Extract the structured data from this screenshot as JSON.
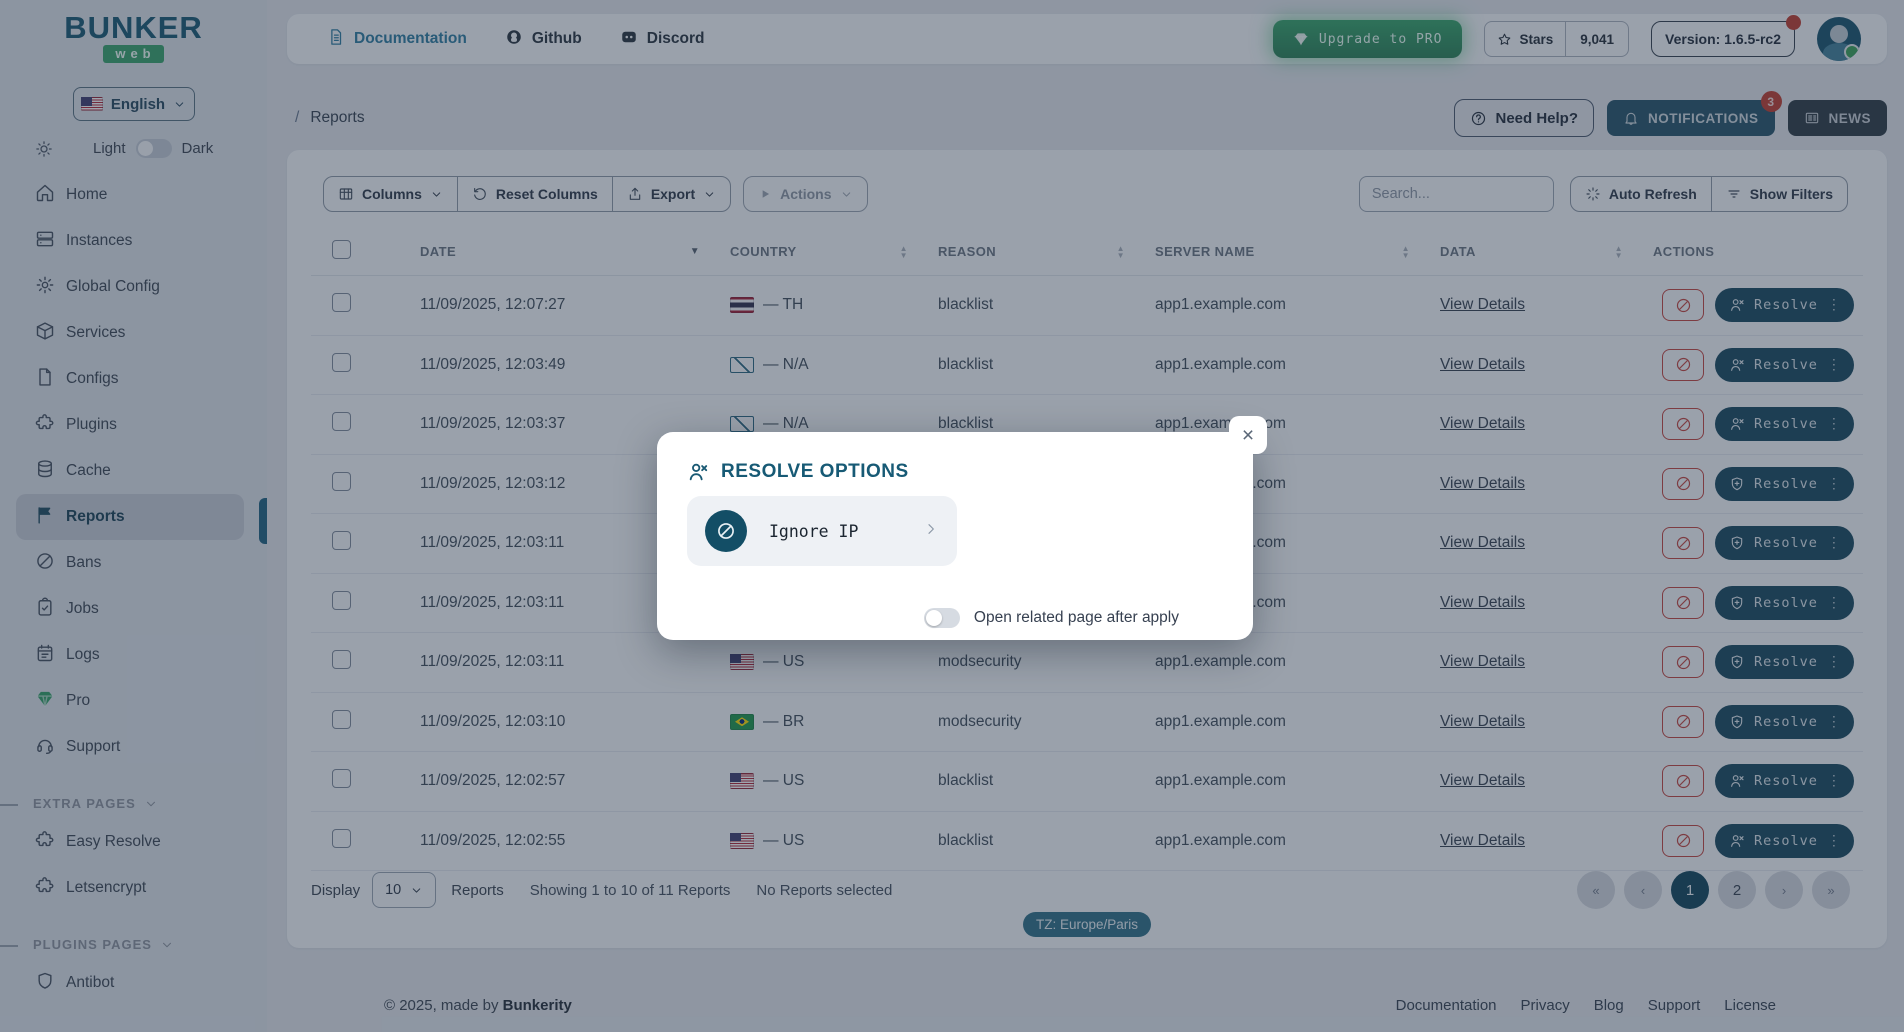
{
  "sidebar": {
    "logo_title": "BUNKER",
    "logo_badge": "web",
    "language": "English",
    "theme_light": "Light",
    "theme_dark": "Dark",
    "nav": [
      {
        "label": "Home",
        "icon": "home",
        "active": "false"
      },
      {
        "label": "Instances",
        "icon": "servers",
        "active": "false"
      },
      {
        "label": "Global Config",
        "icon": "gear",
        "active": "false"
      },
      {
        "label": "Services",
        "icon": "cube",
        "active": "false"
      },
      {
        "label": "Configs",
        "icon": "file",
        "active": "false"
      },
      {
        "label": "Plugins",
        "icon": "puzzle",
        "active": "false"
      },
      {
        "label": "Cache",
        "icon": "db",
        "active": "false"
      },
      {
        "label": "Reports",
        "icon": "flag",
        "active": "true"
      },
      {
        "label": "Bans",
        "icon": "ban",
        "active": "false"
      },
      {
        "label": "Jobs",
        "icon": "clipboard",
        "active": "false"
      },
      {
        "label": "Logs",
        "icon": "calendar",
        "active": "false"
      },
      {
        "label": "Pro",
        "icon": "gem",
        "active": "false",
        "accent": "green"
      },
      {
        "label": "Support",
        "icon": "headset",
        "active": "false"
      }
    ],
    "extra_pages": {
      "title": "EXTRA PAGES",
      "items": [
        {
          "label": "Easy Resolve",
          "icon": "puzzle"
        },
        {
          "label": "Letsencrypt",
          "icon": "puzzle"
        }
      ]
    },
    "plugins_pages": {
      "title": "PLUGINS PAGES",
      "items": [
        {
          "label": "Antibot",
          "icon": "shield"
        }
      ]
    }
  },
  "header": {
    "links": [
      {
        "label": "Documentation",
        "icon": "doc",
        "accent": "true"
      },
      {
        "label": "Github",
        "icon": "github",
        "accent": "false"
      },
      {
        "label": "Discord",
        "icon": "discord",
        "accent": "false"
      }
    ],
    "upgrade": "Upgrade to PRO",
    "stars_label": "Stars",
    "stars_count": "9,041",
    "version": "Version: 1.6.5-rc2"
  },
  "breadcrumb": {
    "separator": "/",
    "current": "Reports",
    "need_help": "Need Help?",
    "notifications": "NOTIFICATIONS",
    "badge": "3",
    "news": "NEWS"
  },
  "toolbar": {
    "columns": "Columns",
    "reset_columns": "Reset Columns",
    "export": "Export",
    "actions": "Actions",
    "search_placeholder": "Search...",
    "auto_refresh": "Auto Refresh",
    "show_filters": "Show Filters"
  },
  "table": {
    "headers": [
      {
        "label": "DATE",
        "sort": "desc"
      },
      {
        "label": "COUNTRY",
        "sort": "both"
      },
      {
        "label": "REASON",
        "sort": "both"
      },
      {
        "label": "SERVER NAME",
        "sort": "both"
      },
      {
        "label": "DATA",
        "sort": "both"
      },
      {
        "label": "ACTIONS",
        "sort": "none"
      }
    ],
    "rows": [
      {
        "date": "11/09/2025, 12:07:27",
        "flag": "th",
        "country": "— TH",
        "reason": "blacklist",
        "server": "app1.example.com",
        "details": "View Details",
        "resolve": "Resolve",
        "menu": "⋮",
        "resolve_icon": "person"
      },
      {
        "date": "11/09/2025, 12:03:49",
        "flag": "na",
        "country": "— N/A",
        "reason": "blacklist",
        "server": "app1.example.com",
        "details": "View Details",
        "resolve": "Resolve",
        "menu": "⋮",
        "resolve_icon": "person"
      },
      {
        "date": "11/09/2025, 12:03:37",
        "flag": "na",
        "country": "— N/A",
        "reason": "blacklist",
        "server": "app1.example.com",
        "details": "View Details",
        "resolve": "Resolve",
        "menu": "⋮",
        "resolve_icon": "person"
      },
      {
        "date": "11/09/2025, 12:03:12",
        "flag": "none",
        "country": "",
        "reason": "",
        "server": "app1.example.com",
        "details": "View Details",
        "resolve": "Resolve",
        "menu": "⋮",
        "resolve_icon": "shield"
      },
      {
        "date": "11/09/2025, 12:03:11",
        "flag": "none",
        "country": "",
        "reason": "",
        "server": "app1.example.com",
        "details": "View Details",
        "resolve": "Resolve",
        "menu": "⋮",
        "resolve_icon": "shield"
      },
      {
        "date": "11/09/2025, 12:03:11",
        "flag": "none",
        "country": "",
        "reason": "",
        "server": "app1.example.com",
        "details": "View Details",
        "resolve": "Resolve",
        "menu": "⋮",
        "resolve_icon": "shield"
      },
      {
        "date": "11/09/2025, 12:03:11",
        "flag": "us",
        "country": "— US",
        "reason": "modsecurity",
        "server": "app1.example.com",
        "details": "View Details",
        "resolve": "Resolve",
        "menu": "⋮",
        "resolve_icon": "shield"
      },
      {
        "date": "11/09/2025, 12:03:10",
        "flag": "br",
        "country": "— BR",
        "reason": "modsecurity",
        "server": "app1.example.com",
        "details": "View Details",
        "resolve": "Resolve",
        "menu": "⋮",
        "resolve_icon": "shield"
      },
      {
        "date": "11/09/2025, 12:02:57",
        "flag": "us",
        "country": "— US",
        "reason": "blacklist",
        "server": "app1.example.com",
        "details": "View Details",
        "resolve": "Resolve",
        "menu": "⋮",
        "resolve_icon": "person"
      },
      {
        "date": "11/09/2025, 12:02:55",
        "flag": "us",
        "country": "— US",
        "reason": "blacklist",
        "server": "app1.example.com",
        "details": "View Details",
        "resolve": "Resolve",
        "menu": "⋮",
        "resolve_icon": "person"
      }
    ]
  },
  "table_footer": {
    "display": "Display",
    "page_size": "10",
    "unit": "Reports",
    "showing": "Showing 1 to 10 of 11 Reports",
    "selected": "No Reports selected",
    "timezone": "TZ: Europe/Paris",
    "pagination": [
      {
        "glyph": "«",
        "state": "off"
      },
      {
        "glyph": "‹",
        "state": "off"
      },
      {
        "glyph": "1",
        "state": "active"
      },
      {
        "glyph": "2",
        "state": "on"
      },
      {
        "glyph": "›",
        "state": "off"
      },
      {
        "glyph": "»",
        "state": "off"
      }
    ]
  },
  "page_footer": {
    "copyright": "© 2025, made by",
    "brand": "Bunkerity",
    "links": [
      {
        "label": "Documentation"
      },
      {
        "label": "Privacy"
      },
      {
        "label": "Blog"
      },
      {
        "label": "Support"
      },
      {
        "label": "License"
      }
    ]
  },
  "modal": {
    "title": "RESOLVE OPTIONS",
    "option_label": "Ignore IP",
    "toggle_label": "Open related page after apply",
    "close_glyph": "×"
  },
  "colors": {
    "accent_teal": "#175a75",
    "green": "#2f9e63",
    "red": "#c0392b",
    "dark_button": "#15455c"
  }
}
